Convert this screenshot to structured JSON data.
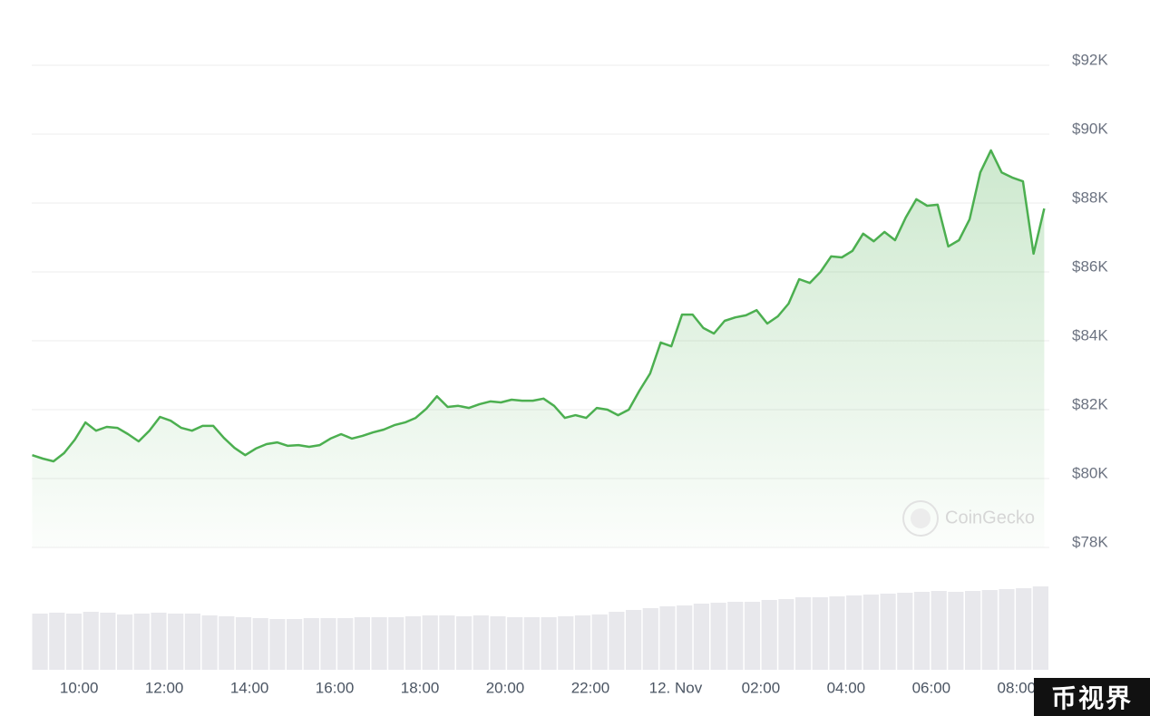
{
  "chart_data": {
    "type": "line",
    "x": [
      8.9,
      9.15,
      9.4,
      9.65,
      9.9,
      10.15,
      10.4,
      10.65,
      10.9,
      11.15,
      11.4,
      11.65,
      11.9,
      12.15,
      12.4,
      12.65,
      12.9,
      13.15,
      13.4,
      13.65,
      13.9,
      14.15,
      14.4,
      14.65,
      14.9,
      15.15,
      15.4,
      15.65,
      15.9,
      16.15,
      16.4,
      16.65,
      16.9,
      17.15,
      17.4,
      17.65,
      17.9,
      18.15,
      18.4,
      18.65,
      18.9,
      19.15,
      19.4,
      19.65,
      19.9,
      20.15,
      20.4,
      20.65,
      20.9,
      21.15,
      21.4,
      21.65,
      21.9,
      22.15,
      22.4,
      22.65,
      22.9,
      23.15,
      23.4,
      23.65,
      23.9,
      24.15,
      24.4,
      24.65,
      24.9,
      25.15,
      25.4,
      25.65,
      25.9,
      26.15,
      26.4,
      26.65,
      26.9,
      27.15,
      27.4,
      27.65,
      27.9,
      28.15,
      28.4,
      28.65,
      28.9,
      29.15,
      29.4,
      29.65,
      29.9,
      30.15,
      30.4,
      30.65,
      30.9,
      31.15,
      31.4,
      31.65,
      31.9,
      32.15,
      32.4,
      32.65
    ],
    "values": [
      80680,
      80580,
      80500,
      80740,
      81130,
      81630,
      81390,
      81500,
      81470,
      81290,
      81080,
      81390,
      81790,
      81680,
      81470,
      81390,
      81530,
      81530,
      81180,
      80890,
      80680,
      80870,
      81000,
      81050,
      80950,
      80970,
      80920,
      80970,
      81160,
      81290,
      81160,
      81240,
      81340,
      81420,
      81550,
      81630,
      81760,
      82030,
      82390,
      82080,
      82110,
      82050,
      82160,
      82240,
      82210,
      82290,
      82260,
      82260,
      82320,
      82110,
      81760,
      81840,
      81760,
      82050,
      82000,
      81840,
      82000,
      82550,
      83050,
      83950,
      83840,
      84760,
      84760,
      84370,
      84210,
      84580,
      84680,
      84740,
      84890,
      84500,
      84710,
      85080,
      85790,
      85680,
      86000,
      86450,
      86420,
      86610,
      87110,
      86890,
      87160,
      86920,
      87580,
      88110,
      87920,
      87950,
      86740,
      86920,
      87530,
      88890,
      89530,
      88890,
      88740,
      88630,
      86530,
      87840
    ],
    "color": "#4caf50",
    "xlim": [
      8.89,
      32.77
    ],
    "xticks": [
      {
        "value": 10,
        "label": "10:00"
      },
      {
        "value": 12,
        "label": "12:00"
      },
      {
        "value": 14,
        "label": "14:00"
      },
      {
        "value": 16,
        "label": "16:00"
      },
      {
        "value": 18,
        "label": "18:00"
      },
      {
        "value": 20,
        "label": "20:00"
      },
      {
        "value": 22,
        "label": "22:00"
      },
      {
        "value": 24,
        "label": "12. Nov"
      },
      {
        "value": 26,
        "label": "02:00"
      },
      {
        "value": 28,
        "label": "04:00"
      },
      {
        "value": 30,
        "label": "06:00"
      },
      {
        "value": 32,
        "label": "08:00"
      }
    ],
    "ylim": [
      78000,
      92000
    ],
    "yticks": [
      {
        "value": 78000,
        "label": "$78K"
      },
      {
        "value": 80000,
        "label": "$80K"
      },
      {
        "value": 82000,
        "label": "$82K"
      },
      {
        "value": 84000,
        "label": "$84K"
      },
      {
        "value": 86000,
        "label": "$86K"
      },
      {
        "value": 88000,
        "label": "$88K"
      },
      {
        "value": 90000,
        "label": "$90K"
      },
      {
        "value": 92000,
        "label": "$92K"
      }
    ],
    "grid": true,
    "watermark": "CoinGecko",
    "volume": {
      "color": "#e8e8ec",
      "ylim": [
        0,
        100
      ],
      "values": [
        62,
        63,
        62,
        64,
        63,
        61,
        62,
        63,
        62,
        62,
        60,
        59,
        58,
        57,
        56,
        56,
        57,
        57,
        57,
        58,
        58,
        58,
        59,
        60,
        60,
        59,
        60,
        59,
        58,
        58,
        58,
        59,
        60,
        61,
        64,
        66,
        68,
        70,
        71,
        73,
        74,
        75,
        75,
        77,
        78,
        80,
        80,
        81,
        82,
        83,
        84,
        85,
        86,
        87,
        86,
        87,
        88,
        89,
        90,
        92
      ]
    }
  },
  "badge": "币视界"
}
